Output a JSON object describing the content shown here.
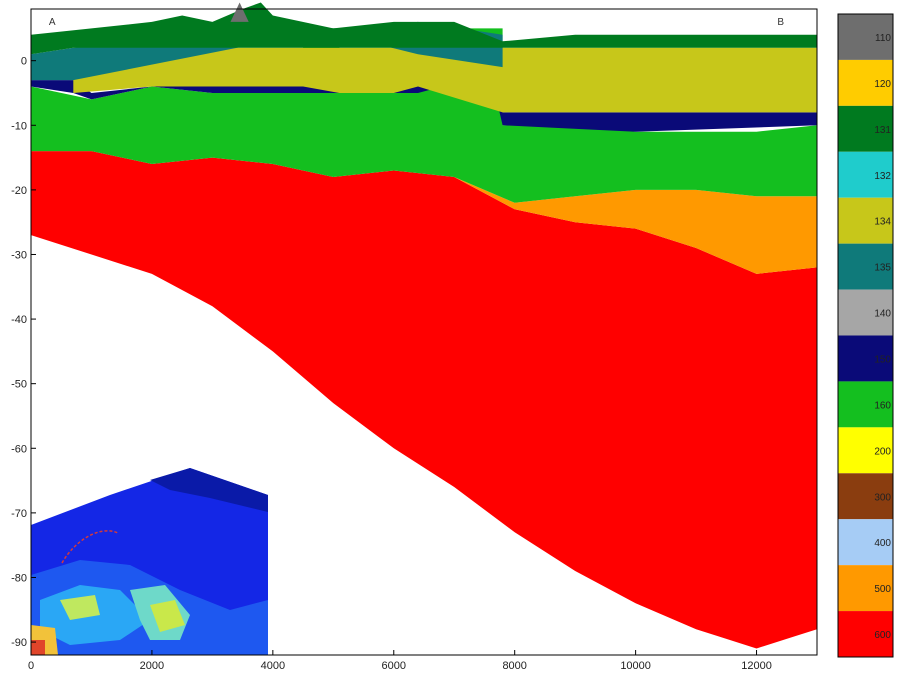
{
  "chart_data": {
    "type": "area",
    "title": "",
    "xlabel": "",
    "ylabel": "",
    "xlim": [
      0,
      13000
    ],
    "ylim": [
      -92,
      8
    ],
    "grid": false,
    "x_ticks": [
      0,
      2000,
      4000,
      6000,
      8000,
      10000,
      12000
    ],
    "y_ticks": [
      0,
      -10,
      -20,
      -30,
      -40,
      -50,
      -60,
      -70,
      -80,
      -90
    ],
    "section_labels": [
      "A",
      "B"
    ],
    "legend": {
      "placement": "right",
      "entries": [
        {
          "code": "110",
          "color": "#6e6e6e"
        },
        {
          "code": "120",
          "color": "#ffcc00"
        },
        {
          "code": "131",
          "color": "#007a1f"
        },
        {
          "code": "132",
          "color": "#1fcccc"
        },
        {
          "code": "134",
          "color": "#c7c71a"
        },
        {
          "code": "135",
          "color": "#0f7a7a"
        },
        {
          "code": "140",
          "color": "#a6a6a6"
        },
        {
          "code": "150",
          "color": "#0a0a78"
        },
        {
          "code": "160",
          "color": "#14bf1f"
        },
        {
          "code": "200",
          "color": "#ffff00"
        },
        {
          "code": "300",
          "color": "#8a3d0f"
        },
        {
          "code": "400",
          "color": "#a6ccf5"
        },
        {
          "code": "500",
          "color": "#ff9900"
        },
        {
          "code": "600",
          "color": "#ff0000"
        }
      ]
    },
    "series": [
      {
        "unit": "600",
        "color": "#ff0000",
        "top": [
          [
            0,
            -14
          ],
          [
            1000,
            -14
          ],
          [
            2000,
            -16
          ],
          [
            3000,
            -15
          ],
          [
            4000,
            -16
          ],
          [
            5000,
            -18
          ],
          [
            6000,
            -17
          ],
          [
            7000,
            -18
          ],
          [
            8000,
            -23
          ],
          [
            9000,
            -25
          ],
          [
            10000,
            -26
          ],
          [
            11000,
            -29
          ],
          [
            12000,
            -33
          ],
          [
            13000,
            -32
          ]
        ],
        "bottom": [
          [
            0,
            -27
          ],
          [
            1000,
            -30
          ],
          [
            2000,
            -33
          ],
          [
            3000,
            -38
          ],
          [
            4000,
            -45
          ],
          [
            5000,
            -53
          ],
          [
            6000,
            -60
          ],
          [
            7000,
            -66
          ],
          [
            8000,
            -73
          ],
          [
            9000,
            -79
          ],
          [
            10000,
            -84
          ],
          [
            11000,
            -88
          ],
          [
            12000,
            -91
          ],
          [
            13000,
            -88
          ]
        ]
      },
      {
        "unit": "500",
        "color": "#ff9900",
        "top": [
          [
            7000,
            -18
          ],
          [
            8000,
            -22
          ],
          [
            9000,
            -21
          ],
          [
            10000,
            -20
          ],
          [
            11000,
            -20
          ],
          [
            12000,
            -21
          ],
          [
            13000,
            -21
          ]
        ],
        "bottom": [
          [
            7000,
            -18
          ],
          [
            8000,
            -23
          ],
          [
            9000,
            -25
          ],
          [
            10000,
            -26
          ],
          [
            11000,
            -29
          ],
          [
            12000,
            -33
          ],
          [
            13000,
            -32
          ]
        ]
      },
      {
        "unit": "160",
        "color": "#14bf1f",
        "top": [
          [
            0,
            -4
          ],
          [
            1000,
            -6
          ],
          [
            2000,
            -4
          ],
          [
            3000,
            -5
          ],
          [
            4000,
            -5
          ],
          [
            4500,
            -5
          ],
          [
            4500,
            5
          ],
          [
            5100,
            5
          ],
          [
            5100,
            -5
          ],
          [
            6000,
            -5
          ],
          [
            6400,
            -5
          ],
          [
            6400,
            5
          ],
          [
            7800,
            5
          ],
          [
            7800,
            -10
          ],
          [
            9000,
            -10
          ],
          [
            10000,
            -11
          ],
          [
            11000,
            -11
          ],
          [
            12000,
            -11
          ],
          [
            13000,
            -10
          ]
        ],
        "bottom": [
          [
            0,
            -14
          ],
          [
            1000,
            -14
          ],
          [
            2000,
            -16
          ],
          [
            3000,
            -15
          ],
          [
            4000,
            -16
          ],
          [
            5000,
            -18
          ],
          [
            6000,
            -17
          ],
          [
            7000,
            -18
          ],
          [
            8000,
            -22
          ],
          [
            9000,
            -21
          ],
          [
            10000,
            -20
          ],
          [
            11000,
            -20
          ],
          [
            12000,
            -21
          ],
          [
            13000,
            -21
          ]
        ]
      },
      {
        "unit": "150",
        "color": "#0a0a78",
        "top": [
          [
            0,
            -3
          ],
          [
            700,
            -3
          ],
          [
            1000,
            -5
          ],
          [
            2000,
            -4
          ],
          [
            3000,
            -4
          ],
          [
            4500,
            -4
          ],
          [
            6400,
            -4
          ],
          [
            7600,
            -1
          ],
          [
            7800,
            -8
          ],
          [
            10000,
            -8
          ],
          [
            13000,
            -8
          ]
        ],
        "bottom": [
          [
            0,
            -4
          ],
          [
            700,
            -5
          ],
          [
            1000,
            -6
          ],
          [
            2000,
            -4
          ],
          [
            3000,
            -5
          ],
          [
            4500,
            -5
          ],
          [
            6400,
            -5
          ],
          [
            7600,
            -2
          ],
          [
            7800,
            -10
          ],
          [
            10000,
            -11
          ],
          [
            13000,
            -10
          ]
        ]
      },
      {
        "unit": "134",
        "color": "#c7c71a",
        "top": [
          [
            700,
            2
          ],
          [
            2000,
            2
          ],
          [
            3000,
            2
          ],
          [
            4500,
            2
          ],
          [
            4500,
            2
          ],
          [
            5100,
            2
          ],
          [
            6000,
            2
          ],
          [
            6400,
            2
          ],
          [
            7800,
            2
          ],
          [
            9000,
            2
          ],
          [
            11000,
            2
          ],
          [
            13000,
            2
          ]
        ],
        "bottom": [
          [
            700,
            -5
          ],
          [
            2000,
            -4
          ],
          [
            3000,
            -4
          ],
          [
            4500,
            -4
          ],
          [
            5100,
            -5
          ],
          [
            6000,
            -5
          ],
          [
            6400,
            -4
          ],
          [
            7800,
            -8
          ],
          [
            10000,
            -8
          ],
          [
            13000,
            -8
          ]
        ]
      },
      {
        "unit": "135",
        "color": "#0f7a7a",
        "top": [
          [
            0,
            1
          ],
          [
            700,
            2
          ],
          [
            4500,
            5
          ],
          [
            5100,
            5
          ],
          [
            6400,
            6
          ],
          [
            7800,
            4
          ]
        ],
        "bottom": [
          [
            0,
            -3
          ],
          [
            700,
            -3
          ],
          [
            4500,
            4
          ],
          [
            5100,
            4
          ],
          [
            6400,
            1
          ],
          [
            7800,
            -1
          ]
        ]
      },
      {
        "unit": "131",
        "color": "#007a1f",
        "top": [
          [
            0,
            4
          ],
          [
            1000,
            5
          ],
          [
            2000,
            6
          ],
          [
            2500,
            7
          ],
          [
            3000,
            6
          ],
          [
            3500,
            8
          ],
          [
            3800,
            9
          ],
          [
            4000,
            7
          ],
          [
            5000,
            5
          ],
          [
            6000,
            6
          ],
          [
            7000,
            6
          ],
          [
            7800,
            3
          ],
          [
            9000,
            4
          ],
          [
            11000,
            4
          ],
          [
            13000,
            4
          ]
        ],
        "bottom": [
          [
            0,
            1
          ],
          [
            700,
            2
          ],
          [
            2000,
            2
          ],
          [
            3000,
            2
          ],
          [
            4500,
            2
          ],
          [
            6400,
            2
          ],
          [
            7800,
            2
          ],
          [
            9000,
            2
          ],
          [
            11000,
            2
          ],
          [
            13000,
            2
          ]
        ]
      },
      {
        "unit": "110",
        "color": "#6e6e6e",
        "top": [
          [
            3300,
            6
          ],
          [
            3450,
            9
          ],
          [
            3600,
            6
          ]
        ],
        "bottom": [
          [
            3300,
            6
          ],
          [
            3450,
            6
          ],
          [
            3600,
            6
          ]
        ]
      }
    ]
  }
}
